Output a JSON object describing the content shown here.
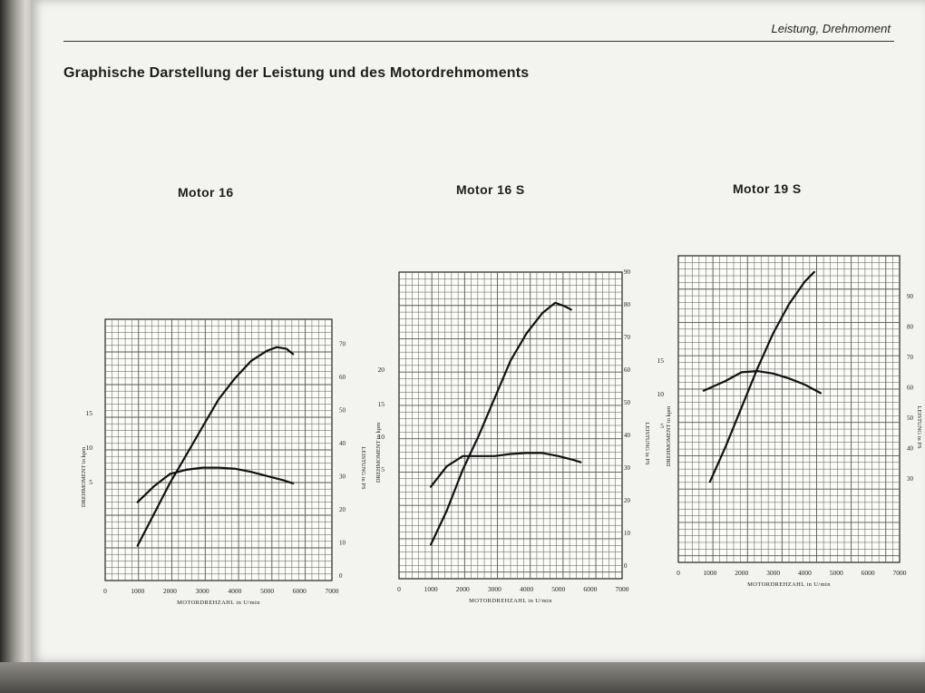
{
  "header": {
    "section": "Leistung, Drehmoment",
    "title": "Graphische Darstellung der Leistung und des Motordrehmoments"
  },
  "chart_data": [
    {
      "type": "line",
      "title": "Motor 16",
      "xlabel": "MOTORDREHZAHL in U/min",
      "ylabel_left": "DREHMOMENT in kpm",
      "ylabel_right": "LEISTUNG in PS",
      "x_ticks": [
        "0",
        "1000",
        "2000",
        "3000",
        "4000",
        "5000",
        "6000",
        "7000"
      ],
      "y_left_ticks": [
        "5",
        "10",
        "15"
      ],
      "y_right_ticks": [
        "0",
        "10",
        "20",
        "30",
        "40",
        "50",
        "60",
        "70"
      ],
      "xlim": [
        0,
        7000
      ],
      "ylim_left": [
        0,
        25
      ],
      "ylim_right": [
        0,
        75
      ],
      "grid": true,
      "series": [
        {
          "axis": "left",
          "x": [
            1000,
            1500,
            2000,
            2500,
            3000,
            3500,
            4000,
            4500,
            5000,
            5500,
            5800
          ],
          "values": [
            7.5,
            9.0,
            10.2,
            10.6,
            10.8,
            10.8,
            10.7,
            10.4,
            10.0,
            9.6,
            9.3
          ]
        },
        {
          "axis": "right",
          "x": [
            1000,
            1500,
            2000,
            2500,
            3000,
            3500,
            4000,
            4500,
            5000,
            5300,
            5600,
            5800
          ],
          "values": [
            10,
            19,
            28,
            36,
            44,
            52,
            58,
            63,
            66,
            67,
            66.5,
            65
          ]
        }
      ]
    },
    {
      "type": "line",
      "title": "Motor 16 S",
      "xlabel": "MOTORDREHZAHL in U/min",
      "ylabel_left": "DREHMOMENT in kpm",
      "ylabel_right": "LEISTUNG in PS",
      "x_ticks": [
        "0",
        "1000",
        "2000",
        "3000",
        "4000",
        "5000",
        "6000",
        "7000"
      ],
      "y_left_ticks": [
        "5",
        "10",
        "15",
        "20"
      ],
      "y_right_ticks": [
        "0",
        "10",
        "20",
        "30",
        "40",
        "50",
        "60",
        "70",
        "80",
        "90"
      ],
      "xlim": [
        0,
        7000
      ],
      "ylim_left": [
        0,
        30
      ],
      "ylim_right": [
        0,
        90
      ],
      "grid": true,
      "series": [
        {
          "axis": "left",
          "x": [
            1000,
            1500,
            2000,
            2500,
            3000,
            3500,
            4000,
            4500,
            5000,
            5500,
            5700
          ],
          "values": [
            9.0,
            11.0,
            12.0,
            12.0,
            12.0,
            12.2,
            12.3,
            12.3,
            12.0,
            11.6,
            11.4
          ]
        },
        {
          "axis": "right",
          "x": [
            1000,
            1500,
            2000,
            2500,
            3000,
            3500,
            4000,
            4500,
            4900,
            5200,
            5400
          ],
          "values": [
            10,
            20,
            32,
            42,
            53,
            64,
            72,
            78,
            81,
            80,
            79
          ]
        }
      ]
    },
    {
      "type": "line",
      "title": "Motor 19 S",
      "xlabel": "MOTORDREHZAHL in U/min",
      "ylabel_left": "DREHMOMENT in kpm",
      "ylabel_right": "LEISTUNG in PS",
      "x_ticks": [
        "0",
        "1000",
        "2000",
        "3000",
        "4000",
        "5000",
        "6000",
        "7000"
      ],
      "y_left_ticks": [
        "5",
        "10",
        "15"
      ],
      "y_right_ticks": [
        "30",
        "40",
        "50",
        "60",
        "70",
        "80",
        "90"
      ],
      "xlim": [
        0,
        7000
      ],
      "ylim_left": [
        0,
        25
      ],
      "ylim_right": [
        0,
        95
      ],
      "grid": true,
      "series": [
        {
          "axis": "left",
          "x": [
            800,
            1500,
            2000,
            2500,
            3000,
            3500,
            4000,
            4500
          ],
          "values": [
            14.0,
            14.8,
            15.5,
            15.6,
            15.4,
            15.0,
            14.5,
            13.8
          ]
        },
        {
          "axis": "right",
          "x": [
            1000,
            1500,
            2000,
            2500,
            3000,
            3500,
            4000,
            4300
          ],
          "values": [
            25,
            36,
            48,
            60,
            71,
            80,
            87,
            90
          ]
        }
      ]
    }
  ]
}
